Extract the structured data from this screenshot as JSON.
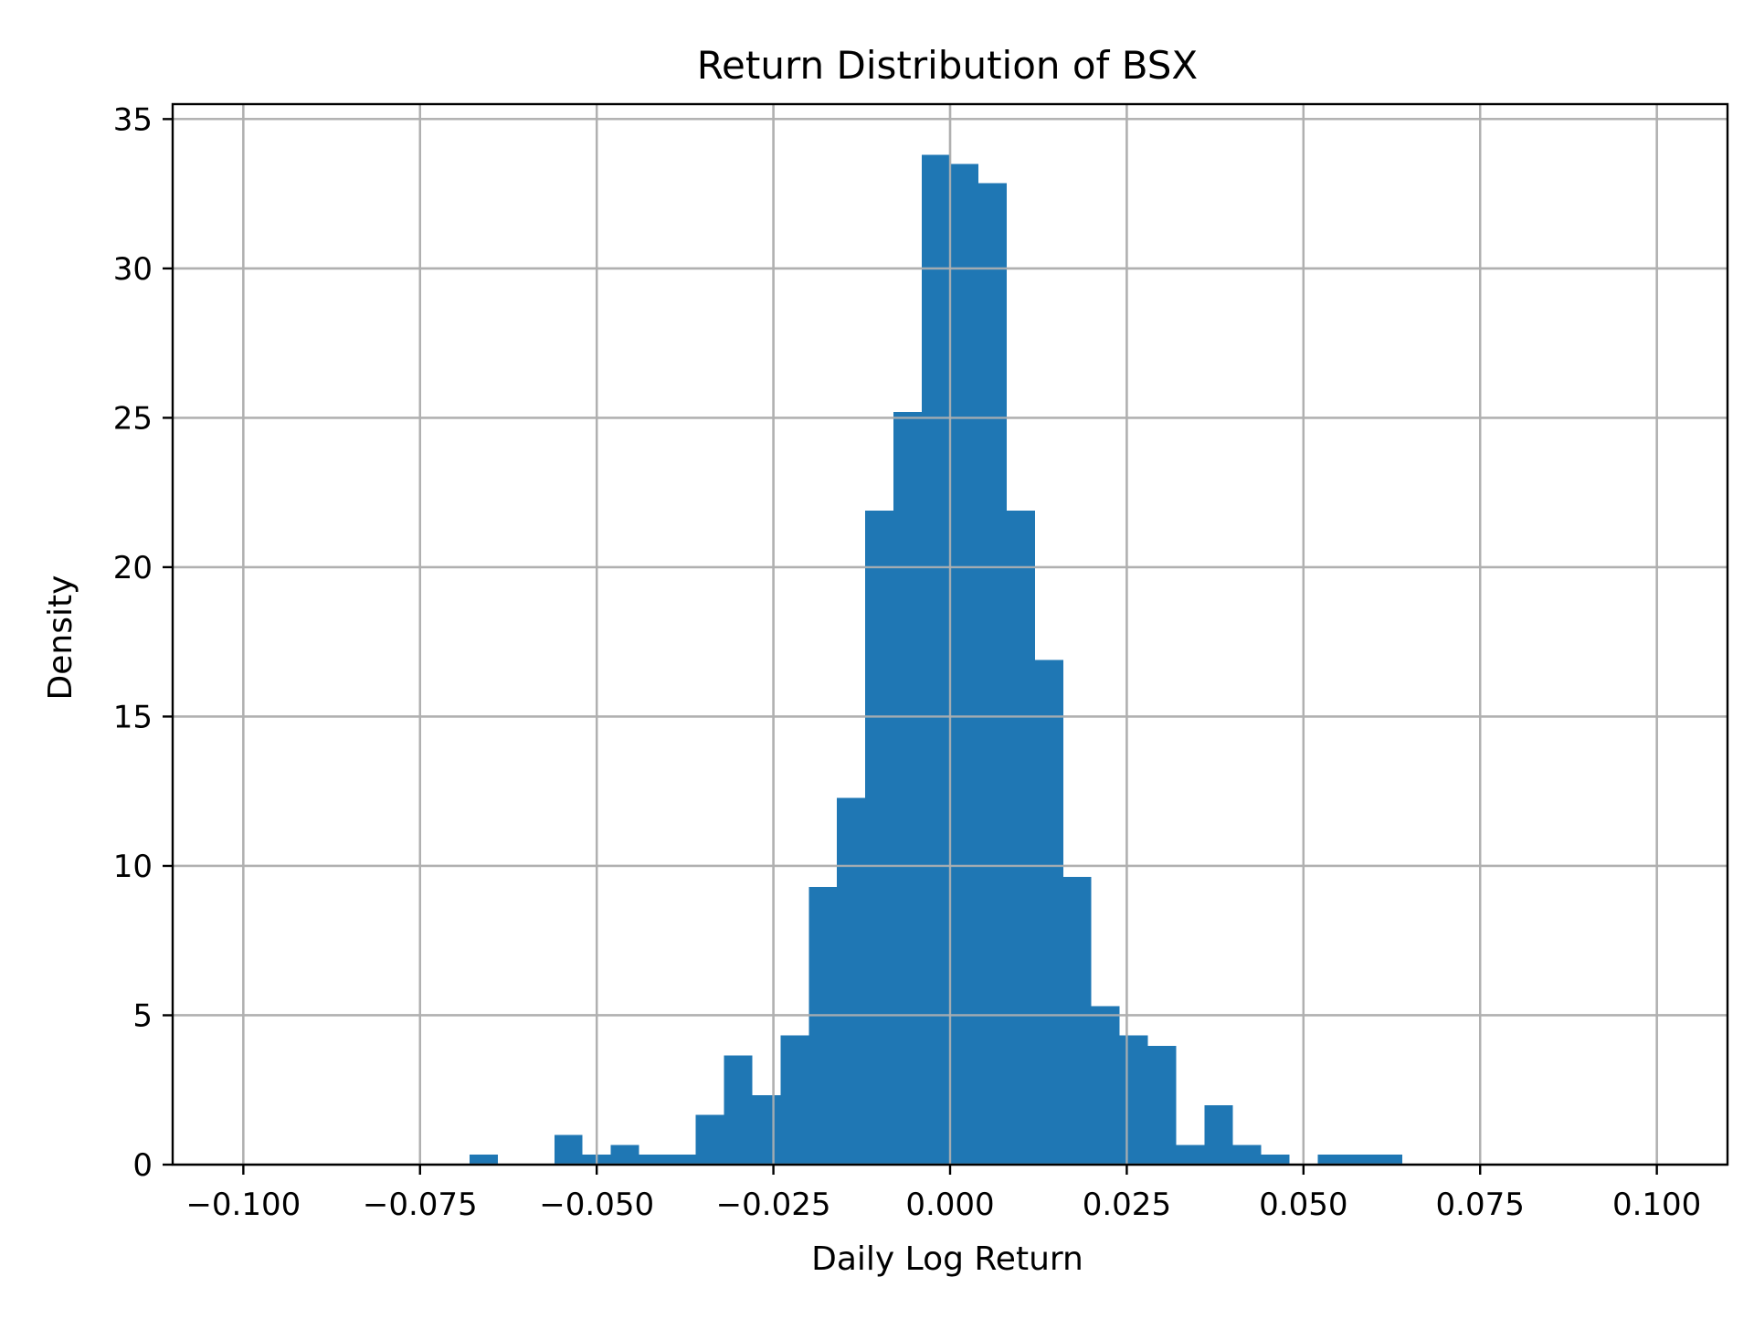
{
  "chart_data": {
    "type": "bar",
    "histogram": true,
    "title": "Return Distribution of BSX",
    "xlabel": "Daily Log Return",
    "ylabel": "Density",
    "xlim": [
      -0.11,
      0.11
    ],
    "ylim": [
      0,
      35.5
    ],
    "grid": true,
    "color": "#1f77b4",
    "x_ticks": [
      -0.1,
      -0.075,
      -0.05,
      -0.025,
      0.0,
      0.025,
      0.05,
      0.075,
      0.1
    ],
    "x_tick_labels": [
      "−0.100",
      "−0.075",
      "−0.050",
      "−0.025",
      "0.000",
      "0.025",
      "0.050",
      "0.075",
      "0.100"
    ],
    "y_ticks": [
      0,
      5,
      10,
      15,
      20,
      25,
      30,
      35
    ],
    "y_tick_labels": [
      "0",
      "5",
      "10",
      "15",
      "20",
      "25",
      "30",
      "35"
    ],
    "bins": [
      {
        "x0": -0.068,
        "x1": -0.064,
        "density": 0.33
      },
      {
        "x0": -0.064,
        "x1": -0.06,
        "density": 0.0
      },
      {
        "x0": -0.06,
        "x1": -0.056,
        "density": 0.0
      },
      {
        "x0": -0.056,
        "x1": -0.052,
        "density": 1.0
      },
      {
        "x0": -0.052,
        "x1": -0.048,
        "density": 0.33
      },
      {
        "x0": -0.048,
        "x1": -0.044,
        "density": 0.66
      },
      {
        "x0": -0.044,
        "x1": -0.04,
        "density": 0.33
      },
      {
        "x0": -0.04,
        "x1": -0.036,
        "density": 0.33
      },
      {
        "x0": -0.036,
        "x1": -0.032,
        "density": 1.66
      },
      {
        "x0": -0.032,
        "x1": -0.028,
        "density": 3.65
      },
      {
        "x0": -0.028,
        "x1": -0.024,
        "density": 2.32
      },
      {
        "x0": -0.024,
        "x1": -0.02,
        "density": 4.32
      },
      {
        "x0": -0.02,
        "x1": -0.016,
        "density": 9.3
      },
      {
        "x0": -0.016,
        "x1": -0.012,
        "density": 12.28
      },
      {
        "x0": -0.012,
        "x1": -0.008,
        "density": 21.9
      },
      {
        "x0": -0.008,
        "x1": -0.004,
        "density": 25.2
      },
      {
        "x0": -0.004,
        "x1": 0.0,
        "density": 33.8
      },
      {
        "x0": 0.0,
        "x1": 0.004,
        "density": 33.5
      },
      {
        "x0": 0.004,
        "x1": 0.008,
        "density": 32.85
      },
      {
        "x0": 0.008,
        "x1": 0.012,
        "density": 21.9
      },
      {
        "x0": 0.012,
        "x1": 0.016,
        "density": 16.9
      },
      {
        "x0": 0.016,
        "x1": 0.02,
        "density": 9.63
      },
      {
        "x0": 0.02,
        "x1": 0.024,
        "density": 5.31
      },
      {
        "x0": 0.024,
        "x1": 0.028,
        "density": 4.32
      },
      {
        "x0": 0.028,
        "x1": 0.032,
        "density": 3.98
      },
      {
        "x0": 0.032,
        "x1": 0.036,
        "density": 0.66
      },
      {
        "x0": 0.036,
        "x1": 0.04,
        "density": 1.99
      },
      {
        "x0": 0.04,
        "x1": 0.044,
        "density": 0.66
      },
      {
        "x0": 0.044,
        "x1": 0.048,
        "density": 0.33
      },
      {
        "x0": 0.048,
        "x1": 0.052,
        "density": 0.0
      },
      {
        "x0": 0.052,
        "x1": 0.056,
        "density": 0.33
      },
      {
        "x0": 0.056,
        "x1": 0.06,
        "density": 0.33
      },
      {
        "x0": 0.06,
        "x1": 0.064,
        "density": 0.33
      }
    ]
  }
}
